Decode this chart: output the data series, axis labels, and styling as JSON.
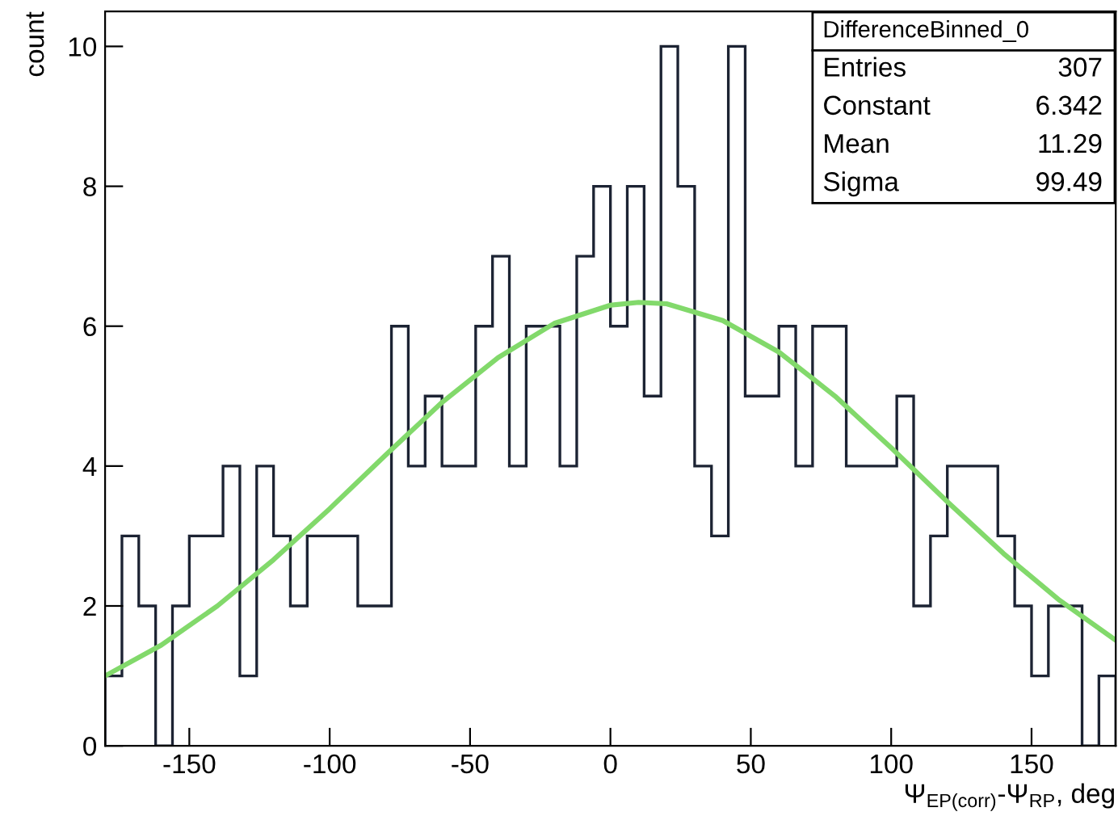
{
  "chart_data": {
    "type": "histogram",
    "xlabel": "Ψ$_{EP(corr)}$-Ψ$_{RP}$, deg",
    "ylabel": "count",
    "series": [
      {
        "color": "#1c2333",
        "bins": [
          -180,
          -174,
          -168,
          -162,
          -156,
          -150,
          -144,
          -138,
          -132,
          -126,
          -120,
          -114,
          -108,
          -102,
          -96,
          -90,
          -84,
          -78,
          -72,
          -66,
          -60,
          -54,
          -48,
          -42,
          -36,
          -30,
          -24,
          -18,
          -12,
          -6,
          0,
          6,
          12,
          18,
          24,
          30,
          36,
          42,
          48,
          54,
          60,
          66,
          72,
          78,
          84,
          90,
          96,
          102,
          108,
          114,
          120,
          126,
          132,
          138,
          144,
          150,
          156,
          162,
          168,
          174,
          180
        ],
        "values": [
          1,
          3,
          2,
          0,
          2,
          3,
          3,
          4,
          1,
          4,
          3,
          2,
          3,
          3,
          3,
          2,
          2,
          6,
          4,
          5,
          4,
          4,
          6,
          7,
          4,
          6,
          6,
          4,
          7,
          8,
          6,
          8,
          5,
          10,
          8,
          4,
          3,
          10,
          5,
          5,
          6,
          4,
          6,
          6,
          4,
          4,
          4,
          5,
          2,
          3,
          4,
          4,
          4,
          3,
          2,
          1,
          2,
          2,
          0,
          1
        ]
      },
      {
        "type": "line",
        "color": "#82d96b",
        "x": [
          -180,
          -160,
          -140,
          -120,
          -100,
          -80,
          -60,
          -40,
          -20,
          0,
          10,
          20,
          40,
          60,
          80,
          100,
          120,
          140,
          160,
          180
        ],
        "values": [
          1.0,
          1.44,
          2.0,
          2.66,
          3.39,
          4.16,
          4.91,
          5.55,
          6.04,
          6.3,
          6.34,
          6.32,
          6.08,
          5.63,
          5.0,
          4.26,
          3.49,
          2.75,
          2.08,
          1.51
        ]
      }
    ],
    "xlim": [
      -180,
      180
    ],
    "ylim": [
      0,
      10.5
    ],
    "xticks": [
      -150,
      -100,
      -50,
      0,
      50,
      100,
      150
    ],
    "yticks": [
      0,
      2,
      4,
      6,
      8,
      10
    ],
    "grid": false,
    "annotations": [
      "DifferenceBinned_0",
      "Entries",
      "307",
      "Constant",
      "6.342",
      "Mean",
      "11.29",
      "Sigma",
      "99.49"
    ]
  }
}
